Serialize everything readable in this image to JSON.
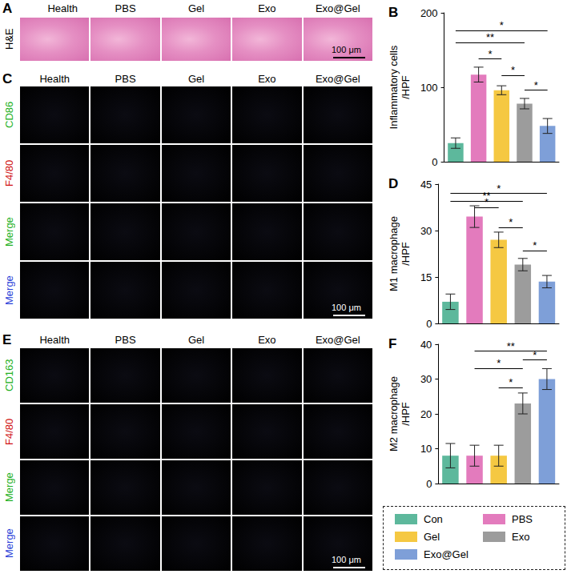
{
  "chart_data": [
    {
      "type": "bar",
      "title": "B",
      "ylabel": "Inflammatory cells\n/HPF",
      "categories": [
        "Con",
        "PBS",
        "Gel",
        "Exo",
        "Exo@Gel"
      ],
      "values": [
        25,
        117,
        96,
        78,
        48
      ],
      "errors": [
        7,
        10,
        6,
        7,
        10
      ],
      "colors": [
        "#5db89c",
        "#e37bbd",
        "#f5c842",
        "#9c9c9c",
        "#7e9fd8"
      ],
      "ylim": [
        0,
        200
      ],
      "yticks": [
        0,
        100,
        200
      ],
      "tick_labels": "y",
      "significance": [
        {
          "from": 0,
          "to": 4,
          "label": "*",
          "y": 176
        },
        {
          "from": 0,
          "to": 3,
          "label": "**",
          "y": 160
        },
        {
          "from": 1,
          "to": 2,
          "label": "*",
          "y": 138
        },
        {
          "from": 2,
          "to": 3,
          "label": "*",
          "y": 116
        },
        {
          "from": 3,
          "to": 4,
          "label": "*",
          "y": 96
        }
      ]
    },
    {
      "type": "bar",
      "title": "D",
      "ylabel": "M1 macrophage\n/HPF",
      "categories": [
        "Con",
        "PBS",
        "Gel",
        "Exo",
        "Exo@Gel"
      ],
      "values": [
        7,
        34.5,
        27,
        19,
        13.5
      ],
      "errors": [
        2.5,
        3.5,
        2.5,
        2,
        2
      ],
      "colors": [
        "#5db89c",
        "#e37bbd",
        "#f5c842",
        "#9c9c9c",
        "#7e9fd8"
      ],
      "ylim": [
        0,
        45
      ],
      "yticks": [
        0,
        15,
        30,
        45
      ],
      "tick_labels": "y",
      "significance": [
        {
          "from": 0,
          "to": 4,
          "label": "*",
          "y": 42
        },
        {
          "from": 0,
          "to": 3,
          "label": "**",
          "y": 39.5
        },
        {
          "from": 1,
          "to": 2,
          "label": "*",
          "y": 37.5
        },
        {
          "from": 2,
          "to": 3,
          "label": "*",
          "y": 31
        },
        {
          "from": 3,
          "to": 4,
          "label": "*",
          "y": 23.5
        }
      ]
    },
    {
      "type": "bar",
      "title": "F",
      "ylabel": "M2 macrophage\n/HPF",
      "categories": [
        "Con",
        "PBS",
        "Gel",
        "Exo",
        "Exo@Gel"
      ],
      "values": [
        8,
        8,
        8,
        23,
        30
      ],
      "errors": [
        3.5,
        3,
        3,
        3,
        3
      ],
      "colors": [
        "#5db89c",
        "#e37bbd",
        "#f5c842",
        "#9c9c9c",
        "#7e9fd8"
      ],
      "ylim": [
        0,
        40
      ],
      "yticks": [
        0,
        10,
        20,
        30,
        40
      ],
      "tick_labels": "y",
      "significance": [
        {
          "from": 1,
          "to": 4,
          "label": "**",
          "y": 38
        },
        {
          "from": 1,
          "to": 3,
          "label": "*",
          "y": 33
        },
        {
          "from": 3,
          "to": 4,
          "label": "*",
          "y": 35.5
        },
        {
          "from": 2,
          "to": 3,
          "label": "*",
          "y": 27.5
        }
      ]
    }
  ],
  "image_panels": [
    {
      "letter": "A",
      "columns": [
        "Health",
        "PBS",
        "Gel",
        "Exo",
        "Exo@Gel"
      ],
      "rows": [
        {
          "label": "H&E",
          "color": "#000000"
        }
      ],
      "scale_bar": "100 μm"
    },
    {
      "letter": "C",
      "columns": [
        "Health",
        "PBS",
        "Gel",
        "Exo",
        "Exo@Gel"
      ],
      "rows": [
        {
          "label": "CD86",
          "color": "#22b022"
        },
        {
          "label": "F4/80",
          "color": "#d01010"
        },
        {
          "label": "Merge",
          "color": "#22b022"
        },
        {
          "label": "Merge",
          "color": "#2a3fd8"
        }
      ],
      "scale_bar": "100 μm"
    },
    {
      "letter": "E",
      "columns": [
        "Health",
        "PBS",
        "Gel",
        "Exo",
        "Exo@Gel"
      ],
      "rows": [
        {
          "label": "CD163",
          "color": "#22b022"
        },
        {
          "label": "F4/80",
          "color": "#d01010"
        },
        {
          "label": "Merge",
          "color": "#22b022"
        },
        {
          "label": "Merge",
          "color": "#2a3fd8"
        }
      ],
      "scale_bar": "100 μm"
    }
  ],
  "legend": {
    "entries": [
      {
        "name": "Con",
        "color": "#5db89c"
      },
      {
        "name": "PBS",
        "color": "#e37bbd"
      },
      {
        "name": "Gel",
        "color": "#f5c842"
      },
      {
        "name": "Exo",
        "color": "#9c9c9c"
      },
      {
        "name": "Exo@Gel",
        "color": "#7e9fd8"
      }
    ]
  }
}
